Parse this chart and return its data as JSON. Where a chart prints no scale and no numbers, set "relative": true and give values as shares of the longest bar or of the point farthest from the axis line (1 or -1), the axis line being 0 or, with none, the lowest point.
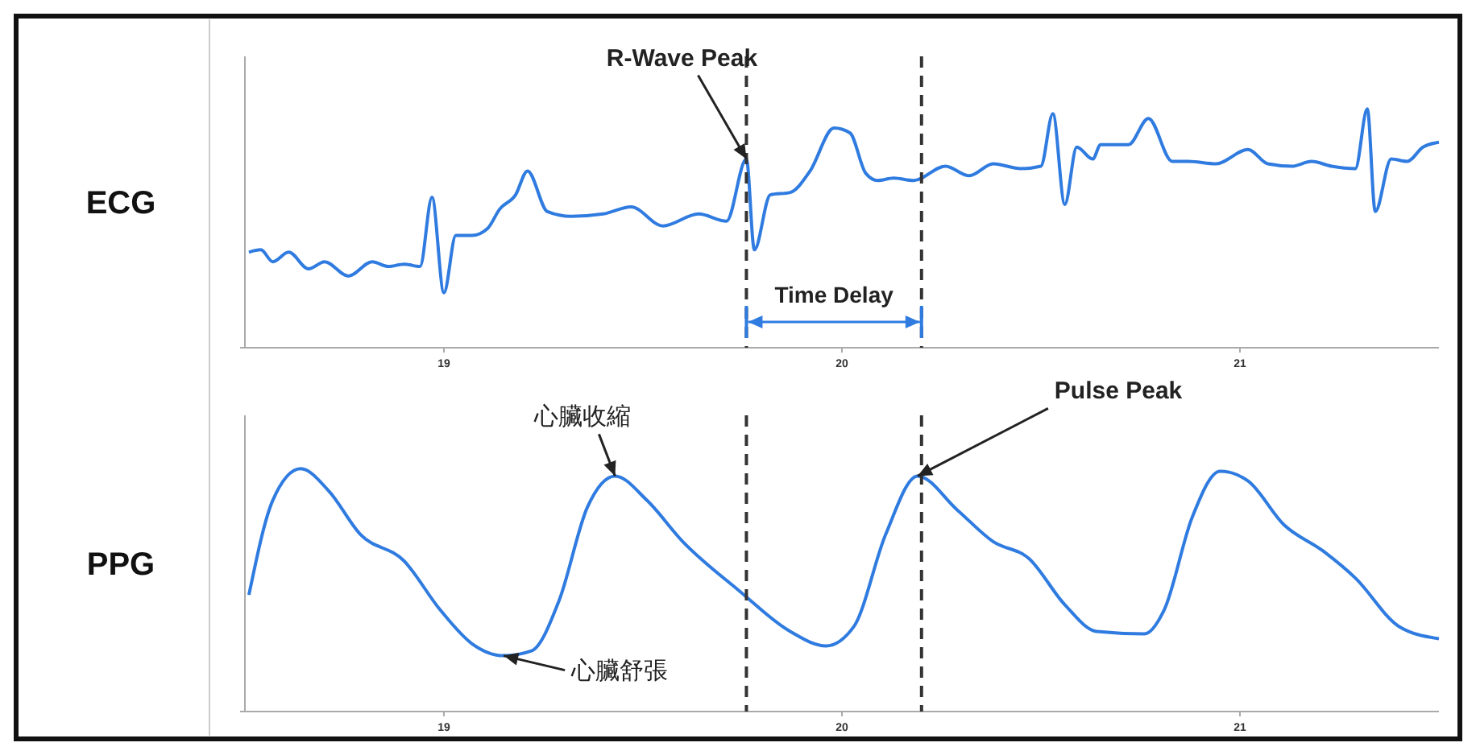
{
  "chart_data": [
    {
      "type": "line",
      "ylabel": "ECG",
      "relative": true,
      "xlim": [
        18.5,
        21.5
      ],
      "xticks": [
        19,
        20,
        21
      ],
      "line_style": "solid",
      "marker": "none",
      "series": [
        {
          "color": "#2f7be0",
          "x": [
            18.51,
            18.54,
            18.57,
            18.61,
            18.66,
            18.7,
            18.76,
            18.82,
            18.86,
            18.9,
            18.94,
            18.97,
            19.0,
            19.03,
            19.07,
            19.11,
            19.14,
            19.18,
            19.21,
            19.26,
            19.32,
            19.4,
            19.47,
            19.55,
            19.64,
            19.71,
            19.76,
            19.78,
            19.82,
            19.87,
            19.92,
            19.98,
            20.02,
            20.06,
            20.09,
            20.13,
            20.18,
            20.26,
            20.32,
            20.38,
            20.45,
            20.5,
            20.53,
            20.56,
            20.59,
            20.63,
            20.65,
            20.72,
            20.77,
            20.83,
            20.87,
            20.94,
            21.02,
            21.07,
            21.13,
            21.18,
            21.23,
            21.29,
            21.32,
            21.34,
            21.38,
            21.42,
            21.46,
            21.5
          ],
          "values": [
            0.4,
            0.41,
            0.36,
            0.4,
            0.33,
            0.36,
            0.3,
            0.36,
            0.34,
            0.35,
            0.34,
            0.63,
            0.23,
            0.47,
            0.47,
            0.5,
            0.58,
            0.64,
            0.74,
            0.57,
            0.55,
            0.56,
            0.59,
            0.51,
            0.56,
            0.53,
            0.79,
            0.41,
            0.64,
            0.65,
            0.74,
            0.92,
            0.9,
            0.73,
            0.7,
            0.71,
            0.7,
            0.76,
            0.72,
            0.77,
            0.75,
            0.76,
            0.98,
            0.6,
            0.84,
            0.79,
            0.85,
            0.85,
            0.96,
            0.78,
            0.78,
            0.77,
            0.83,
            0.77,
            0.76,
            0.78,
            0.76,
            0.75,
            1,
            0.57,
            0.79,
            0.78,
            0.84,
            0.86
          ]
        }
      ],
      "ref_lines": [
        {
          "axis": "x",
          "value": 19.76,
          "line_style": "dashed",
          "color": "#333333"
        },
        {
          "axis": "x",
          "value": 20.2,
          "line_style": "dashed",
          "color": "#333333"
        }
      ],
      "annotations": [
        {
          "text": "R-Wave Peak",
          "x": 19.76,
          "y": 0.79
        },
        "Time Delay"
      ]
    },
    {
      "type": "line",
      "ylabel": "PPG",
      "relative": true,
      "xlim": [
        18.5,
        21.5
      ],
      "xticks": [
        19,
        20,
        21
      ],
      "line_style": "solid",
      "marker": "none",
      "series": [
        {
          "color": "#2f7be0",
          "x": [
            18.51,
            18.57,
            18.64,
            18.71,
            18.79,
            18.9,
            18.99,
            19.07,
            19.15,
            19.22,
            19.29,
            19.36,
            19.43,
            19.51,
            19.6,
            19.74,
            19.87,
            19.96,
            20.03,
            20.11,
            20.19,
            20.29,
            20.38,
            20.47,
            20.56,
            20.64,
            20.76,
            20.81,
            20.88,
            20.95,
            21.02,
            21.11,
            21.21,
            21.29,
            21.4,
            21.5
          ],
          "values": [
            0.48,
            0.87,
            1,
            0.91,
            0.73,
            0.62,
            0.42,
            0.28,
            0.23,
            0.25,
            0.46,
            0.84,
            0.97,
            0.87,
            0.7,
            0.5,
            0.33,
            0.27,
            0.35,
            0.73,
            0.97,
            0.83,
            0.7,
            0.63,
            0.44,
            0.33,
            0.32,
            0.42,
            0.8,
            0.99,
            0.95,
            0.77,
            0.66,
            0.55,
            0.35,
            0.3
          ]
        }
      ],
      "ref_lines": [
        {
          "axis": "x",
          "value": 19.76,
          "line_style": "dashed",
          "color": "#333333"
        },
        {
          "axis": "x",
          "value": 20.2,
          "line_style": "dashed",
          "color": "#333333"
        }
      ],
      "annotations": [
        {
          "text": "心臟收縮",
          "x": 19.43,
          "y": 0.97
        },
        {
          "text": "心臟舒張",
          "x": 19.15,
          "y": 0.23
        },
        {
          "text": "Pulse Peak",
          "x": 20.19,
          "y": 0.97
        }
      ]
    }
  ]
}
